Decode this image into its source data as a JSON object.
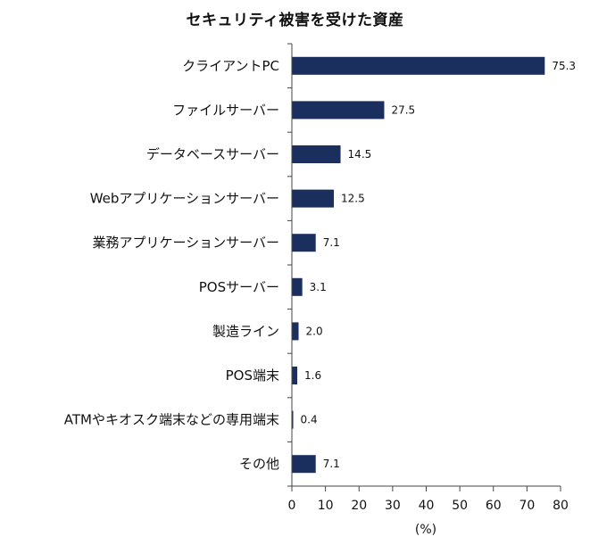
{
  "chart_data": {
    "type": "bar",
    "orientation": "horizontal",
    "title": "セキュリティ被害を受けた資産",
    "xlabel": "(%)",
    "ylabel": "",
    "categories": [
      "クライアントPC",
      "ファイルサーバー",
      "データベースサーバー",
      "Webアプリケーションサーバー",
      "業務アプリケーションサーバー",
      "POSサーバー",
      "製造ライン",
      "POS端末",
      "ATMやキオスク端末などの専用端末",
      "その他"
    ],
    "values": [
      75.3,
      27.5,
      14.5,
      12.5,
      7.1,
      3.1,
      2.0,
      1.6,
      0.4,
      7.1
    ],
    "value_labels": [
      "75.3",
      "27.5",
      "14.5",
      "12.5",
      "7.1",
      "3.1",
      "2.0",
      "1.6",
      "0.4",
      "7.1"
    ],
    "xlim": [
      0,
      80
    ],
    "xticks": [
      0,
      10,
      20,
      30,
      40,
      50,
      60,
      70,
      80
    ],
    "grid": false,
    "legend": "none",
    "bar_color": "#1a2f5e"
  }
}
